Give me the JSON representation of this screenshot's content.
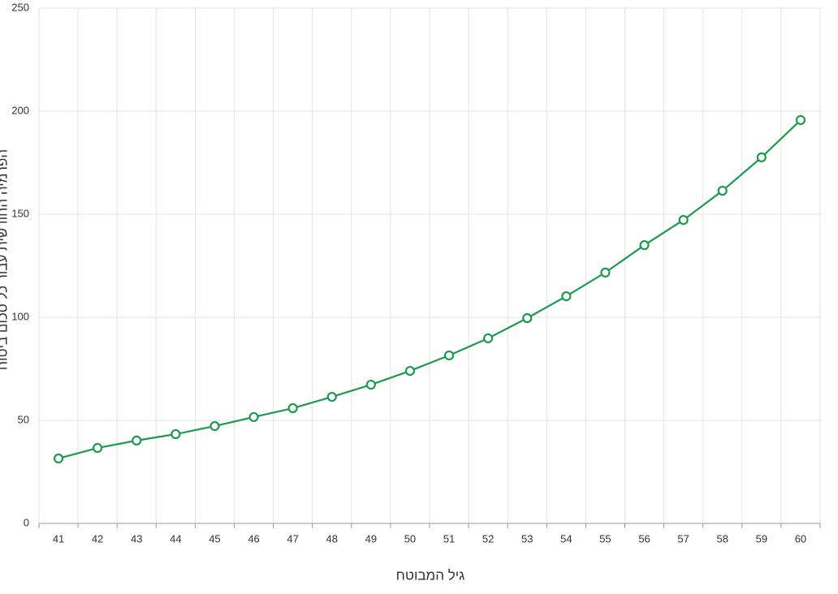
{
  "chart_data": {
    "type": "line",
    "x_label": "גיל המבוטח",
    "y_label": "הפרמיה החודשית עבור כל סכום ביטוח",
    "categories": [
      "41",
      "42",
      "43",
      "44",
      "45",
      "46",
      "47",
      "48",
      "49",
      "50",
      "51",
      "52",
      "53",
      "54",
      "55",
      "56",
      "57",
      "58",
      "59",
      "60"
    ],
    "values": [
      31.5,
      36.6,
      40.2,
      43.3,
      47.2,
      51.6,
      55.9,
      61.4,
      67.3,
      74,
      81.5,
      89.8,
      99.6,
      110.2,
      121.7,
      135,
      147.2,
      161.4,
      177.6,
      195.7
    ],
    "color": "#1e9a4e",
    "ylim": [
      0,
      250
    ],
    "yticks": [
      0,
      50,
      100,
      150,
      200,
      250
    ],
    "grid": true
  }
}
